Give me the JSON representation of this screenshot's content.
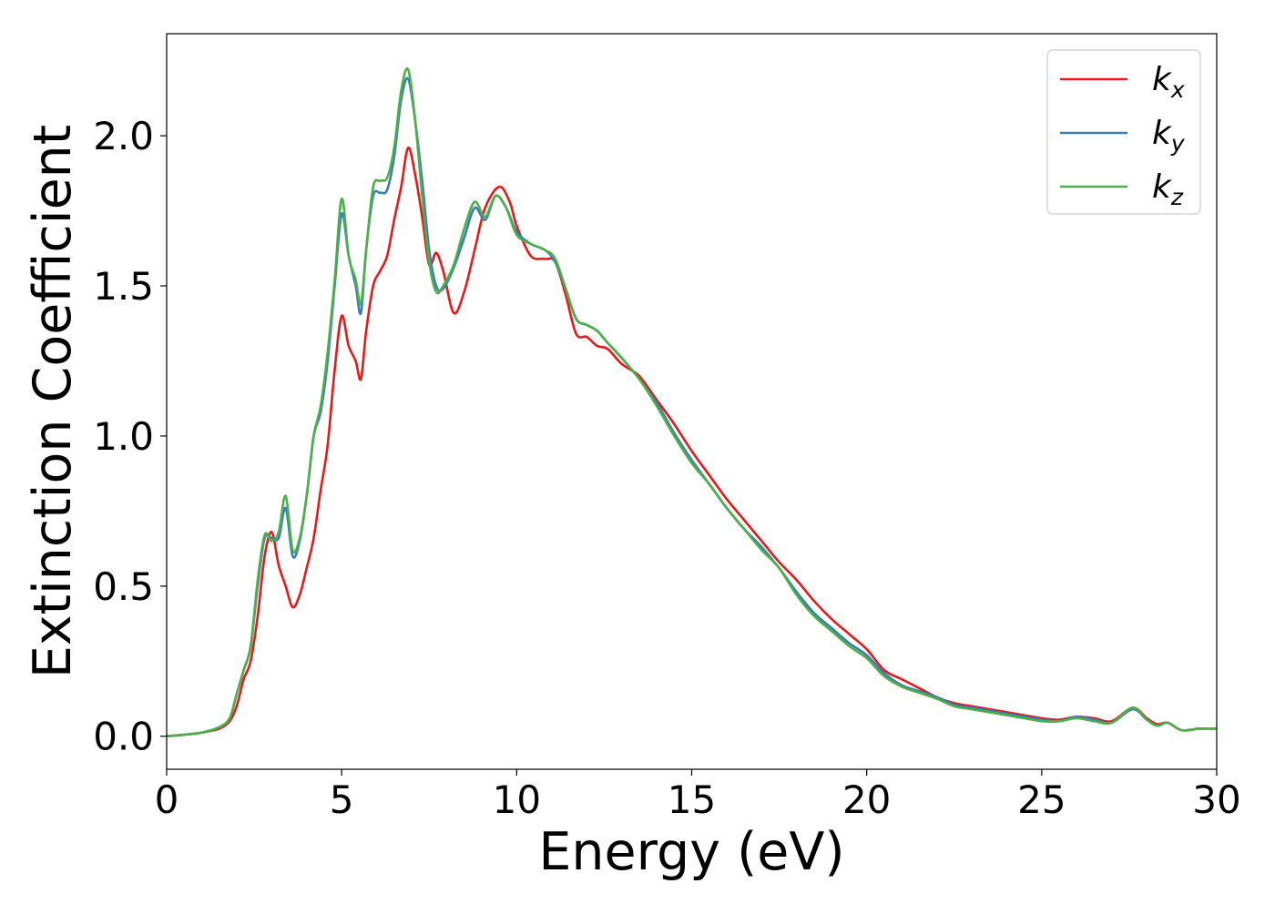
{
  "chart_data": {
    "type": "line",
    "xlabel": "Energy (eV)",
    "ylabel": "Extinction Coefficient",
    "xlim": [
      0,
      30
    ],
    "ylim": [
      -0.11,
      2.34
    ],
    "xticks": [
      0,
      5,
      10,
      15,
      20,
      25,
      30
    ],
    "xtick_labels": [
      "0",
      "5",
      "10",
      "15",
      "20",
      "25",
      "30"
    ],
    "yticks": [
      0.0,
      0.5,
      1.0,
      1.5,
      2.0
    ],
    "ytick_labels": [
      "0.0",
      "0.5",
      "1.0",
      "1.5",
      "2.0"
    ],
    "grid": false,
    "legend_position": "top-right",
    "series": [
      {
        "name": "k_x",
        "label_base": "k",
        "label_sub": "x",
        "color": "#e41a1c",
        "points": [
          [
            0,
            0
          ],
          [
            0.5,
            0.005
          ],
          [
            1.0,
            0.012
          ],
          [
            1.5,
            0.025
          ],
          [
            1.8,
            0.05
          ],
          [
            2.0,
            0.1
          ],
          [
            2.2,
            0.19
          ],
          [
            2.4,
            0.25
          ],
          [
            2.6,
            0.4
          ],
          [
            2.8,
            0.6
          ],
          [
            3.0,
            0.68
          ],
          [
            3.2,
            0.57
          ],
          [
            3.4,
            0.5
          ],
          [
            3.6,
            0.43
          ],
          [
            3.8,
            0.47
          ],
          [
            4.0,
            0.56
          ],
          [
            4.2,
            0.66
          ],
          [
            4.4,
            0.82
          ],
          [
            4.6,
            0.97
          ],
          [
            4.8,
            1.22
          ],
          [
            5.0,
            1.4
          ],
          [
            5.2,
            1.3
          ],
          [
            5.4,
            1.25
          ],
          [
            5.55,
            1.19
          ],
          [
            5.7,
            1.35
          ],
          [
            5.9,
            1.5
          ],
          [
            6.1,
            1.55
          ],
          [
            6.3,
            1.6
          ],
          [
            6.5,
            1.72
          ],
          [
            6.7,
            1.83
          ],
          [
            6.9,
            1.96
          ],
          [
            7.1,
            1.87
          ],
          [
            7.3,
            1.73
          ],
          [
            7.5,
            1.57
          ],
          [
            7.7,
            1.61
          ],
          [
            7.9,
            1.55
          ],
          [
            8.2,
            1.41
          ],
          [
            8.5,
            1.48
          ],
          [
            8.8,
            1.62
          ],
          [
            9.1,
            1.76
          ],
          [
            9.5,
            1.83
          ],
          [
            9.8,
            1.78
          ],
          [
            10.0,
            1.7
          ],
          [
            10.4,
            1.6
          ],
          [
            10.8,
            1.59
          ],
          [
            11.1,
            1.58
          ],
          [
            11.4,
            1.47
          ],
          [
            11.7,
            1.34
          ],
          [
            12.0,
            1.33
          ],
          [
            12.3,
            1.3
          ],
          [
            12.6,
            1.29
          ],
          [
            13.0,
            1.24
          ],
          [
            13.5,
            1.2
          ],
          [
            14.0,
            1.12
          ],
          [
            14.5,
            1.04
          ],
          [
            15.0,
            0.95
          ],
          [
            15.5,
            0.87
          ],
          [
            16.0,
            0.79
          ],
          [
            16.5,
            0.72
          ],
          [
            17.0,
            0.65
          ],
          [
            17.5,
            0.58
          ],
          [
            18.0,
            0.52
          ],
          [
            18.5,
            0.45
          ],
          [
            19.0,
            0.39
          ],
          [
            19.5,
            0.34
          ],
          [
            20.0,
            0.29
          ],
          [
            20.5,
            0.22
          ],
          [
            21.0,
            0.19
          ],
          [
            21.5,
            0.16
          ],
          [
            22.0,
            0.13
          ],
          [
            22.5,
            0.11
          ],
          [
            23.0,
            0.1
          ],
          [
            23.5,
            0.09
          ],
          [
            24.0,
            0.08
          ],
          [
            24.5,
            0.07
          ],
          [
            25.0,
            0.06
          ],
          [
            25.5,
            0.055
          ],
          [
            26.0,
            0.065
          ],
          [
            26.5,
            0.06
          ],
          [
            27.0,
            0.05
          ],
          [
            27.6,
            0.095
          ],
          [
            28.0,
            0.06
          ],
          [
            28.3,
            0.04
          ],
          [
            28.6,
            0.045
          ],
          [
            29.0,
            0.02
          ],
          [
            29.5,
            0.025
          ],
          [
            30.0,
            0.025
          ]
        ]
      },
      {
        "name": "k_y",
        "label_base": "k",
        "label_sub": "y",
        "color": "#377eb8",
        "points": [
          [
            0,
            0
          ],
          [
            0.5,
            0.005
          ],
          [
            1.0,
            0.012
          ],
          [
            1.5,
            0.03
          ],
          [
            1.8,
            0.06
          ],
          [
            2.0,
            0.14
          ],
          [
            2.2,
            0.22
          ],
          [
            2.4,
            0.3
          ],
          [
            2.6,
            0.5
          ],
          [
            2.8,
            0.66
          ],
          [
            3.0,
            0.66
          ],
          [
            3.2,
            0.66
          ],
          [
            3.4,
            0.76
          ],
          [
            3.6,
            0.6
          ],
          [
            3.8,
            0.65
          ],
          [
            4.0,
            0.8
          ],
          [
            4.2,
            1.0
          ],
          [
            4.4,
            1.08
          ],
          [
            4.6,
            1.25
          ],
          [
            4.8,
            1.5
          ],
          [
            5.0,
            1.74
          ],
          [
            5.2,
            1.6
          ],
          [
            5.4,
            1.5
          ],
          [
            5.55,
            1.41
          ],
          [
            5.7,
            1.62
          ],
          [
            5.9,
            1.8
          ],
          [
            6.1,
            1.81
          ],
          [
            6.3,
            1.82
          ],
          [
            6.5,
            1.93
          ],
          [
            6.7,
            2.12
          ],
          [
            6.9,
            2.19
          ],
          [
            7.1,
            2.05
          ],
          [
            7.3,
            1.85
          ],
          [
            7.5,
            1.62
          ],
          [
            7.7,
            1.5
          ],
          [
            7.9,
            1.49
          ],
          [
            8.2,
            1.56
          ],
          [
            8.5,
            1.66
          ],
          [
            8.8,
            1.76
          ],
          [
            9.1,
            1.72
          ],
          [
            9.4,
            1.8
          ],
          [
            9.7,
            1.76
          ],
          [
            10.0,
            1.68
          ],
          [
            10.4,
            1.64
          ],
          [
            10.8,
            1.62
          ],
          [
            11.1,
            1.58
          ],
          [
            11.4,
            1.49
          ],
          [
            11.7,
            1.39
          ],
          [
            12.0,
            1.37
          ],
          [
            12.3,
            1.35
          ],
          [
            12.6,
            1.31
          ],
          [
            13.0,
            1.26
          ],
          [
            13.5,
            1.19
          ],
          [
            14.0,
            1.11
          ],
          [
            14.5,
            1.01
          ],
          [
            15.0,
            0.92
          ],
          [
            15.5,
            0.84
          ],
          [
            16.0,
            0.76
          ],
          [
            16.5,
            0.69
          ],
          [
            17.0,
            0.63
          ],
          [
            17.5,
            0.56
          ],
          [
            18.0,
            0.48
          ],
          [
            18.5,
            0.41
          ],
          [
            19.0,
            0.36
          ],
          [
            19.5,
            0.31
          ],
          [
            20.0,
            0.27
          ],
          [
            20.5,
            0.21
          ],
          [
            21.0,
            0.17
          ],
          [
            21.5,
            0.15
          ],
          [
            22.0,
            0.13
          ],
          [
            22.5,
            0.105
          ],
          [
            23.0,
            0.095
          ],
          [
            23.5,
            0.085
          ],
          [
            24.0,
            0.075
          ],
          [
            24.5,
            0.065
          ],
          [
            25.0,
            0.055
          ],
          [
            25.5,
            0.05
          ],
          [
            26.0,
            0.065
          ],
          [
            26.5,
            0.055
          ],
          [
            27.0,
            0.045
          ],
          [
            27.6,
            0.09
          ],
          [
            28.0,
            0.055
          ],
          [
            28.3,
            0.035
          ],
          [
            28.6,
            0.045
          ],
          [
            29.0,
            0.02
          ],
          [
            29.5,
            0.025
          ],
          [
            30.0,
            0.025
          ]
        ]
      },
      {
        "name": "k_z",
        "label_base": "k",
        "label_sub": "z",
        "color": "#4daf4a",
        "points": [
          [
            0,
            0
          ],
          [
            0.5,
            0.005
          ],
          [
            1.0,
            0.012
          ],
          [
            1.5,
            0.03
          ],
          [
            1.8,
            0.06
          ],
          [
            2.0,
            0.14
          ],
          [
            2.2,
            0.22
          ],
          [
            2.4,
            0.3
          ],
          [
            2.6,
            0.52
          ],
          [
            2.8,
            0.67
          ],
          [
            3.0,
            0.65
          ],
          [
            3.2,
            0.68
          ],
          [
            3.4,
            0.8
          ],
          [
            3.6,
            0.62
          ],
          [
            3.8,
            0.66
          ],
          [
            4.0,
            0.8
          ],
          [
            4.2,
            1.0
          ],
          [
            4.4,
            1.1
          ],
          [
            4.6,
            1.28
          ],
          [
            4.8,
            1.52
          ],
          [
            5.0,
            1.79
          ],
          [
            5.2,
            1.6
          ],
          [
            5.4,
            1.52
          ],
          [
            5.55,
            1.44
          ],
          [
            5.7,
            1.62
          ],
          [
            5.9,
            1.83
          ],
          [
            6.1,
            1.85
          ],
          [
            6.3,
            1.86
          ],
          [
            6.5,
            1.96
          ],
          [
            6.7,
            2.15
          ],
          [
            6.9,
            2.22
          ],
          [
            7.1,
            2.05
          ],
          [
            7.3,
            1.8
          ],
          [
            7.5,
            1.58
          ],
          [
            7.7,
            1.48
          ],
          [
            7.9,
            1.5
          ],
          [
            8.2,
            1.57
          ],
          [
            8.5,
            1.69
          ],
          [
            8.8,
            1.78
          ],
          [
            9.1,
            1.73
          ],
          [
            9.4,
            1.8
          ],
          [
            9.7,
            1.76
          ],
          [
            10.0,
            1.67
          ],
          [
            10.4,
            1.64
          ],
          [
            10.8,
            1.62
          ],
          [
            11.1,
            1.59
          ],
          [
            11.4,
            1.49
          ],
          [
            11.7,
            1.39
          ],
          [
            12.0,
            1.37
          ],
          [
            12.3,
            1.35
          ],
          [
            12.6,
            1.31
          ],
          [
            13.0,
            1.26
          ],
          [
            13.5,
            1.19
          ],
          [
            14.0,
            1.1
          ],
          [
            14.5,
            1.0
          ],
          [
            15.0,
            0.91
          ],
          [
            15.5,
            0.84
          ],
          [
            16.0,
            0.76
          ],
          [
            16.5,
            0.69
          ],
          [
            17.0,
            0.62
          ],
          [
            17.5,
            0.56
          ],
          [
            18.0,
            0.47
          ],
          [
            18.5,
            0.4
          ],
          [
            19.0,
            0.35
          ],
          [
            19.5,
            0.3
          ],
          [
            20.0,
            0.26
          ],
          [
            20.5,
            0.2
          ],
          [
            21.0,
            0.165
          ],
          [
            21.5,
            0.145
          ],
          [
            22.0,
            0.125
          ],
          [
            22.5,
            0.1
          ],
          [
            23.0,
            0.09
          ],
          [
            23.5,
            0.08
          ],
          [
            24.0,
            0.07
          ],
          [
            24.5,
            0.06
          ],
          [
            25.0,
            0.05
          ],
          [
            25.5,
            0.05
          ],
          [
            26.0,
            0.06
          ],
          [
            26.5,
            0.05
          ],
          [
            27.0,
            0.045
          ],
          [
            27.6,
            0.095
          ],
          [
            28.0,
            0.055
          ],
          [
            28.3,
            0.035
          ],
          [
            28.6,
            0.045
          ],
          [
            29.0,
            0.02
          ],
          [
            29.5,
            0.025
          ],
          [
            30.0,
            0.025
          ]
        ]
      }
    ]
  }
}
